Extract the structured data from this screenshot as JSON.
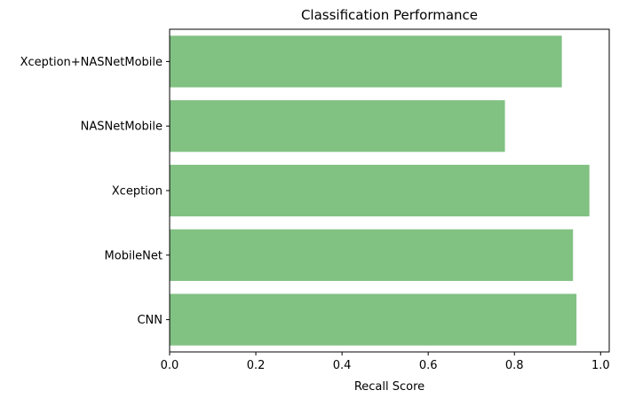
{
  "chart_data": {
    "type": "bar",
    "orientation": "horizontal",
    "title": "Classification Performance",
    "xlabel": "Recall Score",
    "ylabel": "",
    "categories": [
      "CNN",
      "MobileNet",
      "Xception",
      "NASNetMobile",
      "Xception+NASNetMobile"
    ],
    "values": [
      0.944,
      0.936,
      0.974,
      0.778,
      0.91
    ],
    "xlim": [
      0.0,
      1.02
    ],
    "xticks": [
      "0.0",
      "0.2",
      "0.4",
      "0.6",
      "0.8",
      "1.0"
    ],
    "grid": false,
    "legend": "none",
    "bar_color": "#81c182"
  }
}
